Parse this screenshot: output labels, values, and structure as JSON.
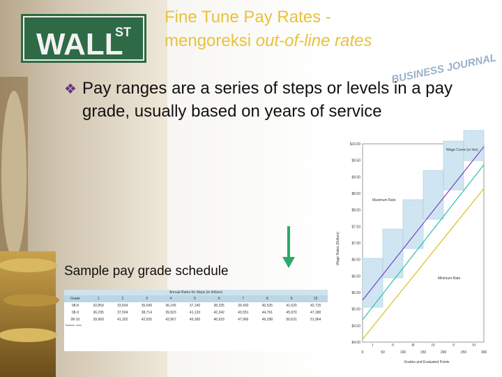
{
  "slide": {
    "title_line1": "Fine Tune Pay Rates -",
    "title_line2_prefix": "mengoreksi ",
    "title_line2_italic": "out-of-line rates",
    "bullet": "Pay ranges are a series of steps or levels in a pay grade, usually based on years of service",
    "caption": "Sample pay grade schedule"
  },
  "background": {
    "sign": "WALL",
    "sign_suffix": "ST",
    "journal": "BUSINESS JOURNAL"
  },
  "table": {
    "title": "Annual Rates for Steps (in dollars)",
    "header": [
      "Grade",
      "1",
      "2",
      "3",
      "4",
      "5",
      "6",
      "7",
      "8",
      "9",
      "10"
    ],
    "rows": [
      [
        "08-8",
        "32,859",
        "33,654",
        "35,049",
        "36,145",
        "37,140",
        "38,335",
        "39,430",
        "40,525",
        "41,620",
        "42,715"
      ],
      [
        "08-9",
        "36,295",
        "37,504",
        "38,714",
        "39,923",
        "41,133",
        "42,342",
        "43,551",
        "44,761",
        "45,970",
        "47,180"
      ],
      [
        "08-10",
        "39,969",
        "41,302",
        "42,635",
        "43,967",
        "45,300",
        "46,633",
        "47,966",
        "49,298",
        "50,631",
        "51,964"
      ]
    ],
    "source": "Source: xxxx"
  },
  "figure": {
    "y_axis_label": "Wage Rates (Dollars)",
    "x_axis_label": "Grades and Evaluated Points",
    "yticks": [
      "$10.00",
      "$9.50",
      "$9.00",
      "$8.50",
      "$8.00",
      "$7.50",
      "$7.00",
      "$6.50",
      "$6.00",
      "$5.50",
      "$5.00",
      "$4.50",
      "$4.00"
    ],
    "xticks": [
      "0",
      "50",
      "100",
      "150",
      "200",
      "250",
      "300"
    ],
    "grades": [
      "I",
      "II",
      "III",
      "IV",
      "V",
      "VI"
    ],
    "labels": {
      "wage_curve": "Wage Curve (or line)",
      "maximum": "Maximum Rate",
      "minimum": "Minimum Rate"
    }
  }
}
